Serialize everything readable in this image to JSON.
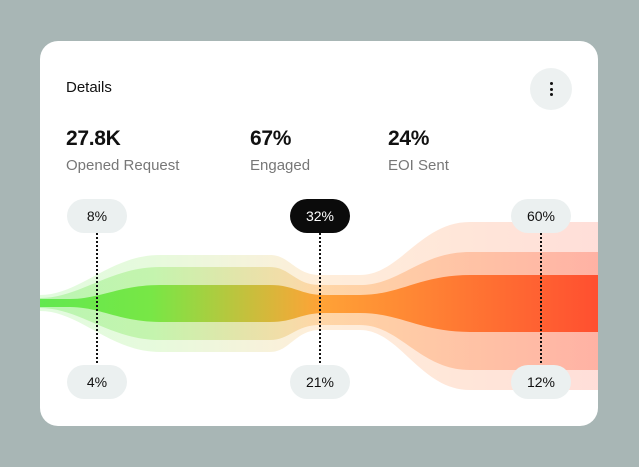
{
  "card": {
    "title": "Details",
    "menu_icon": "more-vertical-icon"
  },
  "stats": [
    {
      "value": "27.8K",
      "label": "Opened Request"
    },
    {
      "value": "67%",
      "label": "Engaged"
    },
    {
      "value": "24%",
      "label": "EOI Sent"
    }
  ],
  "markers": [
    {
      "top": "8%",
      "bottom": "4%",
      "highlighted": false
    },
    {
      "top": "32%",
      "bottom": "21%",
      "highlighted": true
    },
    {
      "top": "60%",
      "bottom": "12%",
      "highlighted": false
    }
  ],
  "colors": {
    "start": "#5de84a",
    "middle": "#ffa030",
    "end": "#ff4a2a",
    "highlight": "#0b0b0b"
  }
}
